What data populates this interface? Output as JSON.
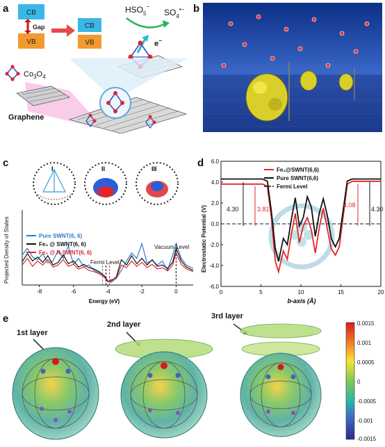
{
  "panels": {
    "a": {
      "label": "a",
      "cb": "CB",
      "vb": "VB",
      "gap": "Gap",
      "hso5": "HSO",
      "hso5_sub": "5",
      "hso5_sup": "−",
      "so4": "SO",
      "so4_sub": "4",
      "so4_sup": "•−",
      "electron": "e",
      "electron_sup": "−",
      "co3o4": "Co",
      "co3o4_sub1": "3",
      "co3o4_mid": "O",
      "co3o4_sub2": "4",
      "graphene": "Graphene"
    },
    "b": {
      "label": "b"
    },
    "c": {
      "label": "c",
      "region_labels": [
        "I",
        "II",
        "III"
      ],
      "fermi_level": "Fermi Level",
      "vacuum_level": "Vacuum Level"
    },
    "d": {
      "label": "d",
      "annotations": [
        "4.30",
        "3.81",
        "4.08",
        "4.30"
      ]
    },
    "e": {
      "label": "e",
      "layers": [
        "1st layer",
        "2nd layer",
        "3rd layer"
      ],
      "colorbar_ticks": [
        "0.0015",
        "0.001",
        "0.0005",
        "0",
        "-0.0005",
        "-0.001",
        "-0.0015"
      ],
      "colorbar_colors": [
        "#d7191c",
        "#f07c2a",
        "#f5e33a",
        "#7fc94f",
        "#2ab7a9",
        "#3b63c4",
        "#2c2c8c"
      ]
    }
  },
  "chart_data": [
    {
      "type": "line",
      "panel": "c",
      "xlabel": "Energy (eV)",
      "ylabel": "Projected Density of States",
      "xlim": [
        -9,
        1
      ],
      "x_ticks": [
        "-8",
        "-6",
        "-4",
        "-2",
        "0"
      ],
      "series": [
        {
          "name": "Pure SWNT(6, 6)",
          "color": "#2b7bcc",
          "x": [
            -9,
            -8.7,
            -8.4,
            -8.1,
            -7.8,
            -7.5,
            -7.2,
            -6.9,
            -6.6,
            -6.3,
            -6.0,
            -5.7,
            -5.4,
            -5.1,
            -4.8,
            -4.5,
            -4.2,
            -4.0,
            -3.8,
            -3.5,
            -3.2,
            -2.9,
            -2.6,
            -2.3,
            -2.0,
            -1.7,
            -1.4,
            -1.1,
            -0.8,
            -0.5,
            -0.2,
            0,
            0.3,
            0.6,
            1.0
          ],
          "y": [
            0.45,
            0.55,
            0.42,
            0.38,
            0.47,
            0.33,
            0.36,
            0.52,
            0.4,
            0.58,
            0.31,
            0.4,
            0.27,
            0.3,
            0.22,
            0.18,
            0.12,
            0.05,
            0.04,
            0.1,
            0.22,
            0.36,
            0.48,
            0.4,
            0.62,
            0.33,
            0.37,
            0.3,
            0.36,
            0.22,
            0.45,
            0.62,
            0.4,
            0.3,
            0.25
          ]
        },
        {
          "name": "Fe₄ @ SWNT(6, 6)",
          "color": "#111111",
          "x": [
            -9,
            -8.7,
            -8.4,
            -8.1,
            -7.8,
            -7.5,
            -7.2,
            -6.9,
            -6.6,
            -6.3,
            -6.0,
            -5.7,
            -5.4,
            -5.1,
            -4.8,
            -4.5,
            -4.2,
            -4.0,
            -3.8,
            -3.5,
            -3.2,
            -2.9,
            -2.6,
            -2.3,
            -2.0,
            -1.7,
            -1.4,
            -1.1,
            -0.8,
            -0.5,
            -0.2,
            0,
            0.3,
            0.6,
            1.0
          ],
          "y": [
            0.35,
            0.47,
            0.36,
            0.42,
            0.34,
            0.44,
            0.3,
            0.34,
            0.45,
            0.32,
            0.36,
            0.27,
            0.31,
            0.26,
            0.24,
            0.2,
            0.14,
            0.06,
            0.06,
            0.12,
            0.38,
            0.3,
            0.44,
            0.32,
            0.4,
            0.3,
            0.38,
            0.28,
            0.3,
            0.25,
            0.34,
            0.55,
            0.36,
            0.27,
            0.22
          ]
        },
        {
          "name": "Fe₄ @ N-SWNT(6, 6)",
          "color": "#e0262b",
          "x": [
            -9,
            -8.7,
            -8.4,
            -8.1,
            -7.8,
            -7.5,
            -7.2,
            -6.9,
            -6.6,
            -6.3,
            -6.0,
            -5.7,
            -5.4,
            -5.1,
            -4.8,
            -4.5,
            -4.2,
            -4.0,
            -3.8,
            -3.5,
            -3.2,
            -2.9,
            -2.6,
            -2.3,
            -2.0,
            -1.7,
            -1.4,
            -1.1,
            -0.8,
            -0.5,
            -0.2,
            0,
            0.3,
            0.6,
            1.0
          ],
          "y": [
            0.3,
            0.4,
            0.28,
            0.36,
            0.3,
            0.38,
            0.27,
            0.3,
            0.38,
            0.28,
            0.31,
            0.24,
            0.27,
            0.22,
            0.2,
            0.17,
            0.12,
            0.05,
            0.08,
            0.1,
            0.3,
            0.26,
            0.36,
            0.28,
            0.34,
            0.26,
            0.31,
            0.24,
            0.26,
            0.21,
            0.3,
            0.48,
            0.31,
            0.24,
            0.2
          ]
        }
      ],
      "markers": {
        "fermi": [
          -4.3,
          -4.1,
          -3.9
        ],
        "vacuum": 0
      }
    },
    {
      "type": "line",
      "panel": "d",
      "xlabel": "b-axis (Å)",
      "ylabel": "Electrostatic Potential (V)",
      "xlim": [
        0,
        20
      ],
      "ylim": [
        -6.0,
        6.0
      ],
      "x_ticks": [
        0,
        5,
        10,
        15,
        20
      ],
      "y_ticks": [
        -6.0,
        -4.0,
        -2.0,
        0.0,
        2.0,
        4.0,
        6.0
      ],
      "series": [
        {
          "name": "Fe₄@SWNT(6,6)",
          "color": "#e0262b",
          "x": [
            0,
            5.2,
            5.8,
            6.3,
            6.8,
            7.2,
            7.8,
            8.3,
            8.8,
            9.3,
            9.8,
            10.3,
            10.8,
            11.3,
            11.8,
            12.3,
            12.8,
            13.3,
            13.8,
            14.3,
            14.8,
            15.3,
            15.8,
            16.4,
            20
          ],
          "y": [
            3.81,
            3.81,
            3.6,
            0.6,
            -3.6,
            -4.6,
            -2.6,
            -3.4,
            -1.0,
            1.0,
            -1.8,
            -0.2,
            0.6,
            -0.6,
            -2.8,
            -0.4,
            1.5,
            -0.5,
            -2.4,
            -3.0,
            -2.2,
            0.8,
            3.8,
            4.08,
            4.08
          ]
        },
        {
          "name": "Pure SWNT(6,6)",
          "color": "#111111",
          "x": [
            0,
            5.2,
            5.8,
            6.3,
            6.8,
            7.2,
            7.8,
            8.3,
            8.8,
            9.3,
            9.8,
            10.3,
            10.8,
            11.3,
            11.8,
            12.3,
            12.8,
            13.3,
            13.8,
            14.3,
            14.8,
            15.3,
            15.8,
            16.4,
            20
          ],
          "y": [
            4.3,
            4.3,
            4.1,
            1.2,
            -2.4,
            -3.6,
            -1.4,
            -2.0,
            0.4,
            2.5,
            -0.2,
            0.6,
            2.6,
            1.6,
            -1.2,
            1.0,
            2.4,
            0.8,
            -1.4,
            -2.2,
            -1.4,
            1.4,
            4.1,
            4.3,
            4.3
          ]
        }
      ],
      "fermi_level": {
        "name": "Fermi Level",
        "y": 0.0,
        "color": "#111111"
      }
    }
  ]
}
